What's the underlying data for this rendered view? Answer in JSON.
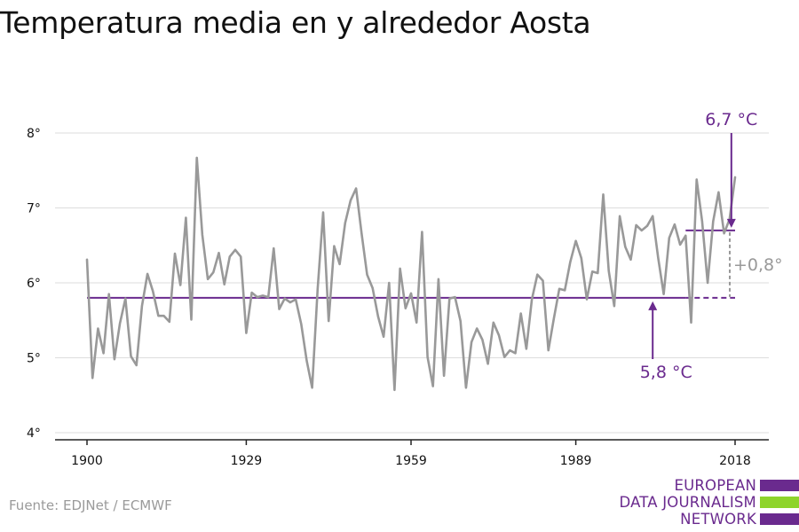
{
  "title": "Temperatura media en y alrededor Aosta",
  "source": "Fuente: EDJNet / ECMWF",
  "logo": {
    "lines": [
      "EUROPEAN",
      "DATA JOURNALISM",
      "NETWORK"
    ],
    "colors": [
      "#6a2a8e",
      "#8ed42b",
      "#6a2a8e"
    ]
  },
  "colors": {
    "series": "#999999",
    "reference": "#6a2a8e",
    "difference": "#999999",
    "grid": "#dddddd",
    "text": "#111111"
  },
  "chart_data": {
    "type": "line",
    "title": "Temperatura media en y alrededor Aosta",
    "xlabel": "",
    "ylabel": "",
    "xlim": [
      1900,
      2018
    ],
    "ylim": [
      4,
      8
    ],
    "x_ticks": [
      1900,
      1929,
      1959,
      1989,
      2018
    ],
    "y_ticks": [
      {
        "value": 4,
        "label": "4°"
      },
      {
        "value": 5,
        "label": "5°"
      },
      {
        "value": 6,
        "label": "6°"
      },
      {
        "value": 7,
        "label": "7°"
      },
      {
        "value": 8,
        "label": "8°"
      }
    ],
    "grid": "horizontal",
    "series": [
      {
        "x": [
          1900,
          1901,
          1902,
          1903,
          1904,
          1905,
          1906,
          1907,
          1908,
          1909,
          1910,
          1911,
          1912,
          1913,
          1914,
          1915,
          1916,
          1917,
          1918,
          1919,
          1920,
          1921,
          1922,
          1923,
          1924,
          1925,
          1926,
          1927,
          1928,
          1929,
          1930,
          1931,
          1932,
          1933,
          1934,
          1935,
          1936,
          1937,
          1938,
          1939,
          1940,
          1941,
          1942,
          1943,
          1944,
          1945,
          1946,
          1947,
          1948,
          1949,
          1950,
          1951,
          1952,
          1953,
          1954,
          1955,
          1956,
          1957,
          1958,
          1959,
          1960,
          1961,
          1962,
          1963,
          1964,
          1965,
          1966,
          1967,
          1968,
          1969,
          1970,
          1971,
          1972,
          1973,
          1974,
          1975,
          1976,
          1977,
          1978,
          1979,
          1980,
          1981,
          1982,
          1983,
          1984,
          1985,
          1986,
          1987,
          1988,
          1989,
          1990,
          1991,
          1992,
          1993,
          1994,
          1995,
          1996,
          1997,
          1998,
          1999,
          2000,
          2001,
          2002,
          2003,
          2004,
          2005,
          2006,
          2007,
          2008,
          2009,
          2010,
          2011,
          2012,
          2013,
          2014,
          2015,
          2016,
          2017,
          2018
        ],
        "values": [
          6.31,
          4.73,
          5.39,
          5.06,
          5.85,
          4.98,
          5.46,
          5.79,
          5.02,
          4.9,
          5.69,
          6.12,
          5.89,
          5.56,
          5.56,
          5.48,
          6.39,
          5.97,
          6.87,
          5.51,
          7.67,
          6.64,
          6.05,
          6.14,
          6.4,
          5.98,
          6.35,
          6.44,
          6.35,
          5.33,
          5.87,
          5.81,
          5.83,
          5.81,
          6.46,
          5.65,
          5.79,
          5.74,
          5.78,
          5.45,
          4.96,
          4.6,
          5.92,
          6.94,
          5.49,
          6.49,
          6.25,
          6.8,
          7.1,
          7.26,
          6.66,
          6.11,
          5.93,
          5.55,
          5.28,
          6.0,
          4.57,
          6.19,
          5.66,
          5.86,
          5.47,
          6.68,
          5.01,
          4.62,
          6.05,
          4.76,
          5.79,
          5.81,
          5.49,
          4.6,
          5.21,
          5.39,
          5.24,
          4.92,
          5.47,
          5.3,
          5.01,
          5.1,
          5.06,
          5.59,
          5.12,
          5.78,
          6.11,
          6.03,
          5.1,
          5.52,
          5.92,
          5.9,
          6.28,
          6.56,
          6.33,
          5.78,
          6.15,
          6.13,
          7.18,
          6.16,
          5.69,
          6.89,
          6.48,
          6.31,
          6.77,
          6.7,
          6.76,
          6.89,
          6.33,
          5.85,
          6.6,
          6.78,
          6.51,
          6.63,
          5.47,
          7.38,
          6.82,
          6.0,
          6.82,
          7.21,
          6.66,
          6.85,
          7.41
        ]
      }
    ],
    "reference_lines": [
      {
        "value": 5.8,
        "from": 1900,
        "to": 2009,
        "dashed_to": 2018,
        "label": "5,8 °C"
      },
      {
        "value": 6.7,
        "from": 2009,
        "to": 2018,
        "label": "6,7 °C"
      }
    ],
    "difference_label": "+0,8°"
  }
}
